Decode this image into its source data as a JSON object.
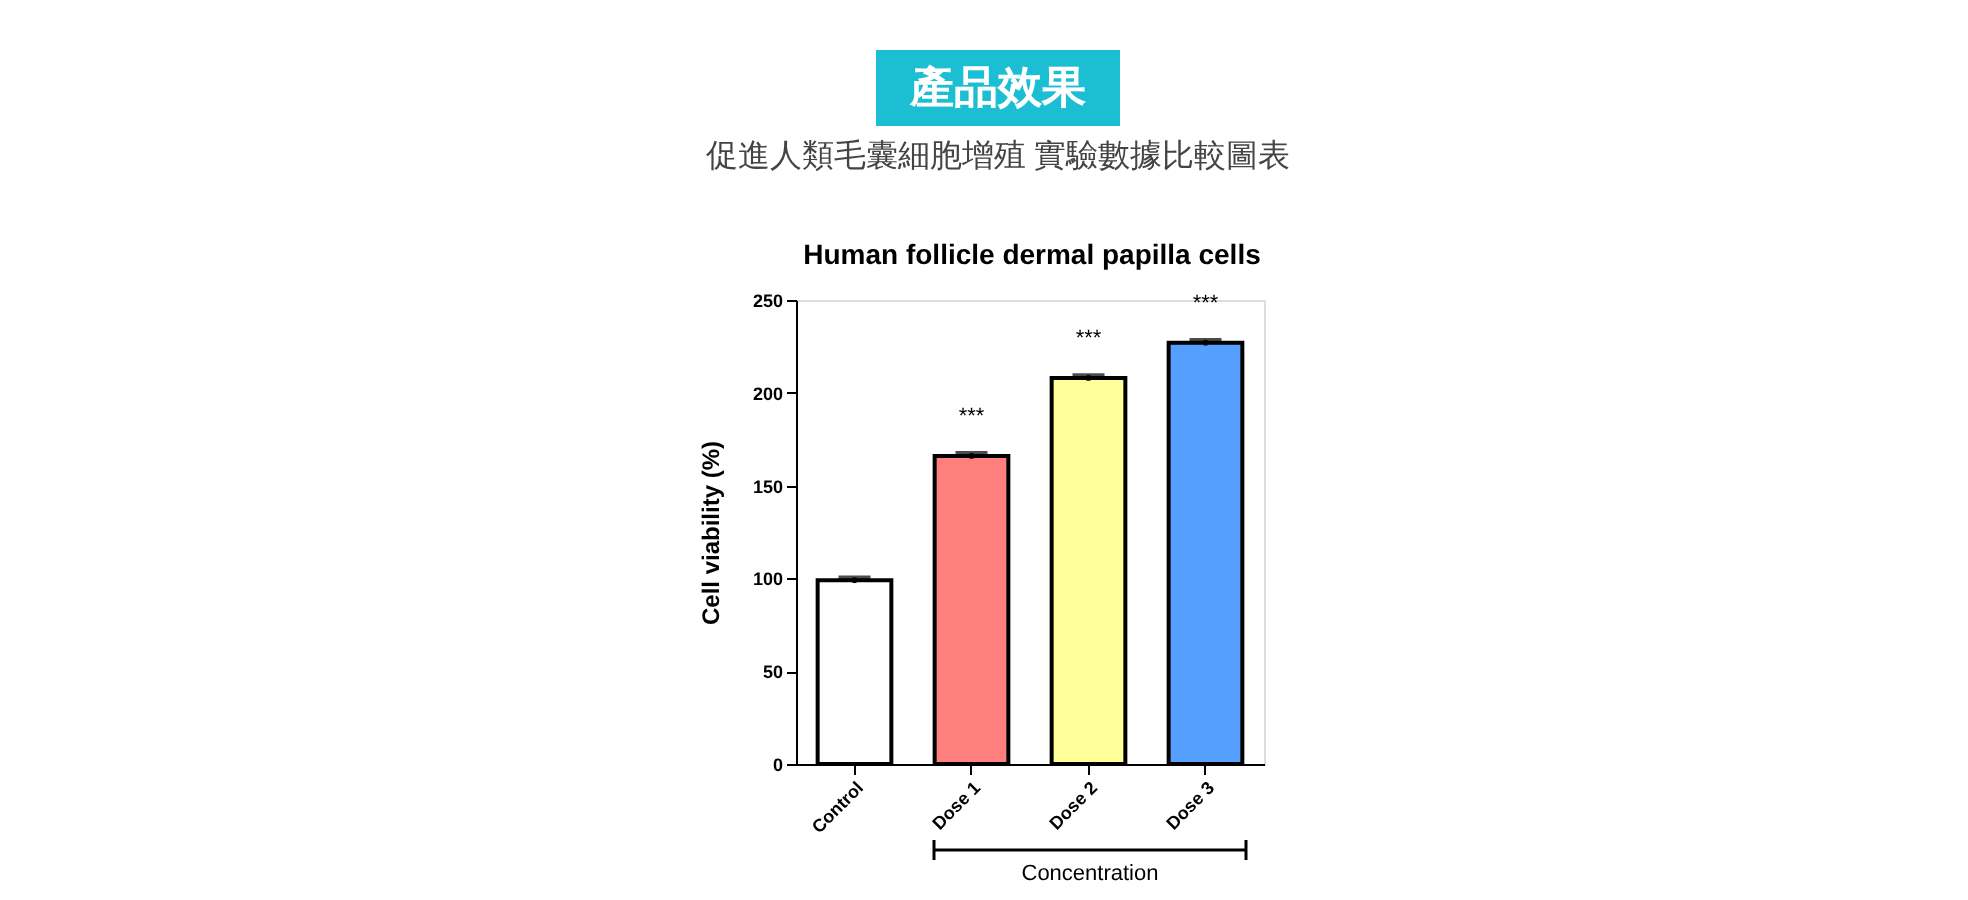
{
  "chart_data": {
    "type": "bar",
    "title": "Human follicle dermal papilla cells",
    "subtitle": "促進人類毛囊細胞增殖 實驗數據比較圖表",
    "ylabel": "Cell viability (%)",
    "categories": [
      "Control",
      "Dose 1",
      "Dose 2",
      "Dose 3"
    ],
    "values": [
      99,
      166,
      208,
      227
    ],
    "errors": [
      1.5,
      1.5,
      1.5,
      1.5
    ],
    "colors": [
      "#ffffff",
      "#ff7f7f",
      "#ffff99",
      "#559fff"
    ],
    "ylim": [
      0,
      250
    ],
    "yticks": [
      0,
      50,
      100,
      150,
      200,
      250
    ],
    "grid": false,
    "annotations": [
      "產品效果",
      "***",
      "***",
      "***",
      "Concentration"
    ]
  }
}
